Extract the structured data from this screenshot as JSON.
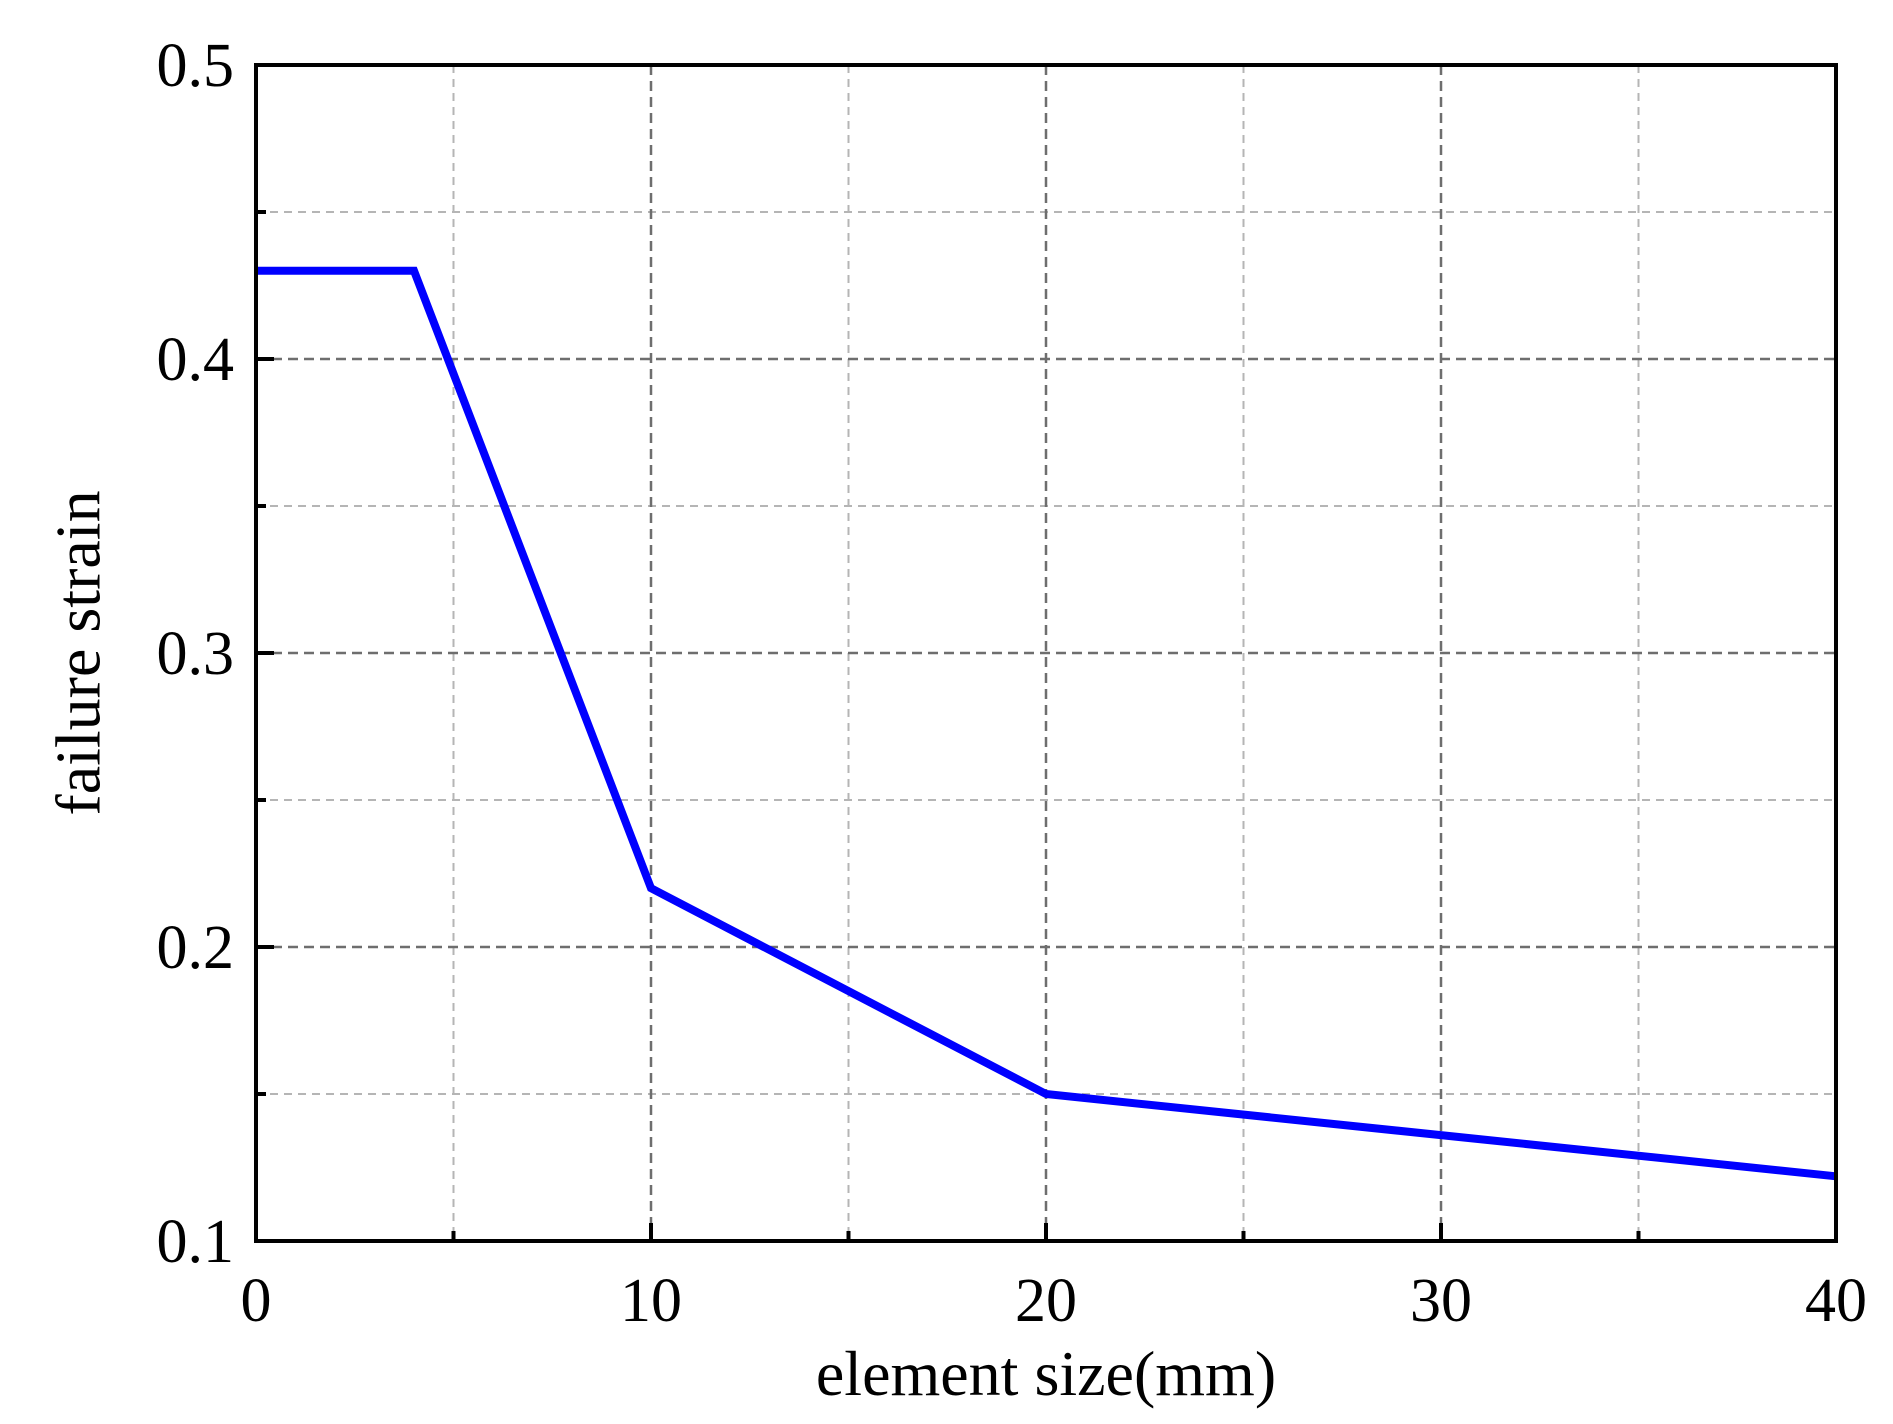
{
  "chart_data": {
    "type": "line",
    "title": "",
    "xlabel": "element size(mm)",
    "ylabel": "failure strain",
    "xlim": [
      0,
      40
    ],
    "ylim": [
      0.1,
      0.5
    ],
    "x_ticks": [
      "0",
      "10",
      "20",
      "30",
      "40"
    ],
    "y_ticks": [
      "0.1",
      "0.2",
      "0.3",
      "0.4",
      "0.5"
    ],
    "x_tick_values": [
      0,
      10,
      20,
      30,
      40
    ],
    "y_tick_values": [
      0.1,
      0.2,
      0.3,
      0.4,
      0.5
    ],
    "x_minor_ticks": [
      5,
      15,
      25,
      35
    ],
    "y_minor_ticks": [
      0.15,
      0.25,
      0.35,
      0.45
    ],
    "grid": true,
    "legend": "none",
    "series": [
      {
        "color": "#0000ff",
        "x": [
          0,
          4,
          10,
          20,
          40
        ],
        "y": [
          0.43,
          0.43,
          0.22,
          0.15,
          0.122
        ]
      }
    ]
  }
}
